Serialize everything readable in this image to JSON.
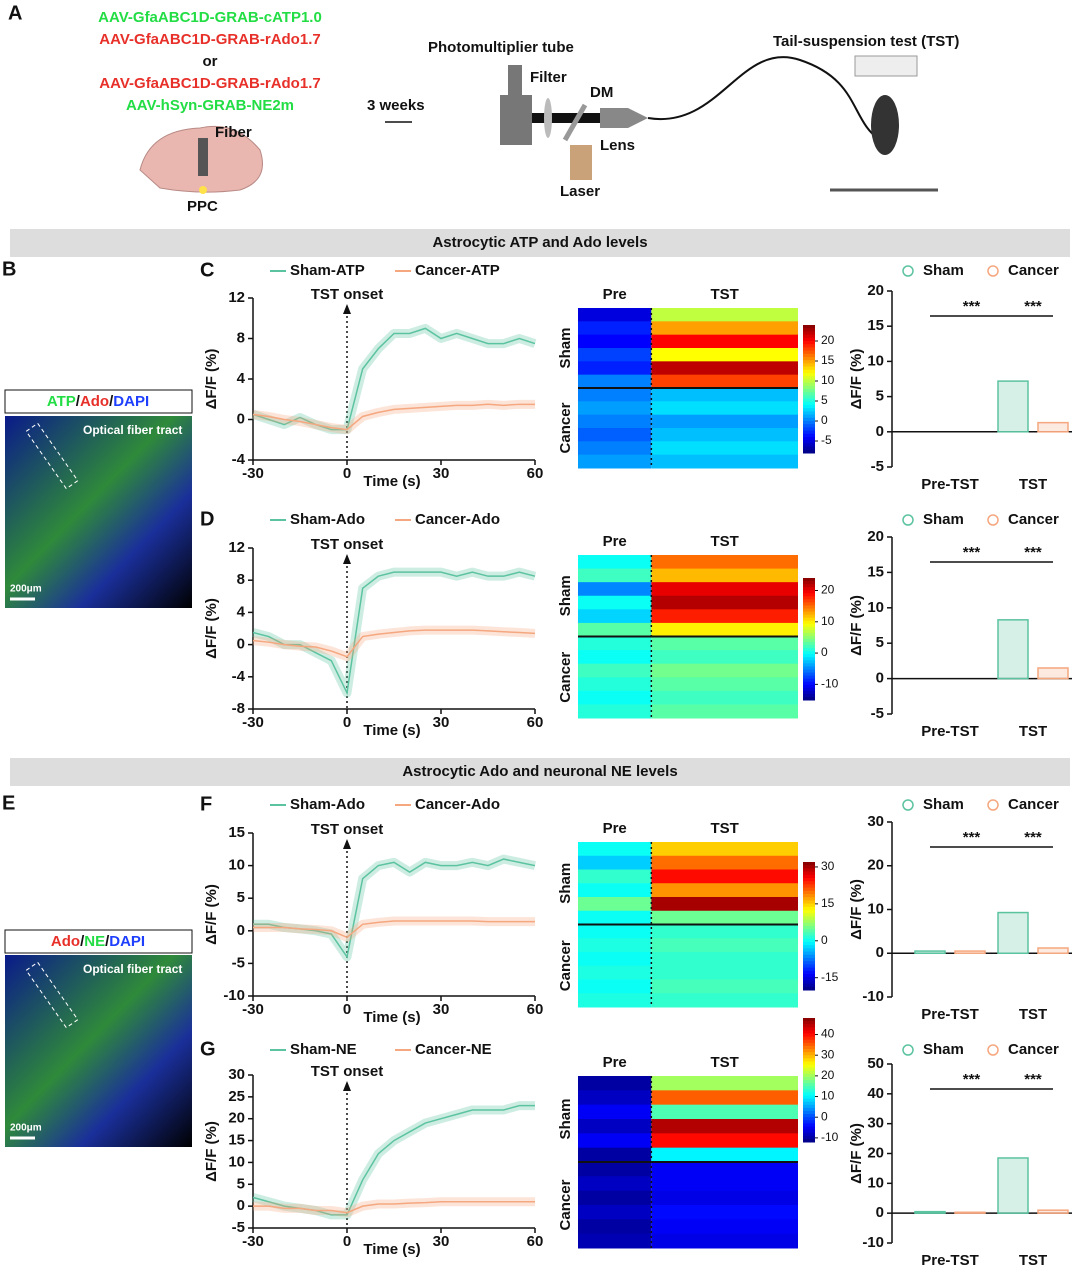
{
  "figure": {
    "panels": [
      "A",
      "B",
      "E"
    ],
    "constructs": [
      {
        "text": "AAV-GfaABC1D-GRAB-cATP1.0",
        "color": "#22dd44"
      },
      {
        "text": "AAV-GfaABC1D-GRAB-rAdo1.7",
        "color": "#e8302a"
      },
      {
        "text": "or",
        "color": "#111111"
      },
      {
        "text": "AAV-GfaABC1D-GRAB-rAdo1.7",
        "color": "#e8302a"
      },
      {
        "text": "AAV-hSyn-GRAB-NE2m",
        "color": "#22dd44"
      }
    ],
    "schematic": {
      "fiber": "Fiber",
      "region": "PPC",
      "delay": "3 weeks",
      "pmt": "Photomultiplier tube",
      "filter": "Filter",
      "dm": "DM",
      "lens": "Lens",
      "laser": "Laser",
      "test": "Tail-suspension test (TST)"
    },
    "sections": [
      "Astrocytic ATP and Ado levels",
      "Astrocytic Ado and neuronal NE levels"
    ],
    "images": [
      {
        "stain": [
          {
            "text": "ATP",
            "color": "#22dd44"
          },
          {
            "text": "/",
            "color": "#111111"
          },
          {
            "text": "Ado",
            "color": "#e8302a"
          },
          {
            "text": "/",
            "color": "#111111"
          },
          {
            "text": "DAPI",
            "color": "#1f3fff"
          }
        ],
        "tract": "Optical fiber tract",
        "scale": "200μm"
      },
      {
        "stain": [
          {
            "text": "Ado",
            "color": "#e8302a"
          },
          {
            "text": "/",
            "color": "#111111"
          },
          {
            "text": "NE",
            "color": "#22dd44"
          },
          {
            "text": "/",
            "color": "#111111"
          },
          {
            "text": "DAPI",
            "color": "#1f3fff"
          }
        ],
        "tract": "Optical fiber tract",
        "scale": "200μm"
      }
    ]
  },
  "chart_data": [
    {
      "type": "line",
      "panel": "C",
      "annotation": "TST onset",
      "xlabel": "Time (s)",
      "ylabel": "ΔF/F (%)",
      "x": [
        -30,
        -25,
        -20,
        -15,
        -10,
        -5,
        0,
        5,
        10,
        15,
        20,
        25,
        30,
        35,
        40,
        45,
        50,
        55,
        60
      ],
      "xlim": [
        -30,
        60
      ],
      "xticks": [
        -30,
        0,
        30,
        60
      ],
      "ylim": [
        -4,
        12
      ],
      "yticks": [
        -4,
        0,
        4,
        8,
        12
      ],
      "series": [
        {
          "name": "Sham-ATP",
          "color": "#5cc3a0",
          "values": [
            0.5,
            0,
            -0.5,
            0.2,
            -0.5,
            -1,
            -1,
            5,
            7,
            8.5,
            8.5,
            9,
            8,
            8.5,
            8,
            7.5,
            7.5,
            8,
            7.5
          ]
        },
        {
          "name": "Cancer-ATP",
          "color": "#f5a77f",
          "values": [
            0.5,
            0.3,
            0,
            -0.2,
            -0.5,
            -0.8,
            -1,
            0.3,
            0.7,
            1,
            1.1,
            1.2,
            1.3,
            1.4,
            1.4,
            1.5,
            1.4,
            1.5,
            1.5
          ]
        }
      ]
    },
    {
      "type": "heatmap",
      "columns": [
        "Pre",
        "TST"
      ],
      "zlim": [
        -8,
        24
      ],
      "zticks": [
        20,
        15,
        10,
        5,
        0,
        -5
      ],
      "groups": [
        {
          "name": "Sham",
          "values": [
            [
              -5,
              10
            ],
            [
              -3,
              15
            ],
            [
              -4,
              20
            ],
            [
              -2,
              12
            ],
            [
              -3,
              22
            ],
            [
              0,
              18
            ]
          ]
        },
        {
          "name": "Cancer",
          "values": [
            [
              0,
              2
            ],
            [
              1,
              3
            ],
            [
              0,
              1
            ],
            [
              -1,
              2
            ],
            [
              0,
              3
            ],
            [
              1,
              2
            ]
          ]
        }
      ]
    },
    {
      "type": "bar",
      "ylabel": "ΔF/F (%)",
      "categories": [
        "Pre-TST",
        "TST"
      ],
      "ylim": [
        -5,
        20
      ],
      "yticks": [
        -5,
        0,
        5,
        10,
        15,
        20
      ],
      "significance": [
        "***",
        "***"
      ],
      "series": [
        {
          "name": "Sham",
          "color": "#5cc3a0",
          "values": [
            0,
            7.2
          ]
        },
        {
          "name": "Cancer",
          "color": "#f5a77f",
          "values": [
            0,
            1.3
          ]
        }
      ]
    },
    {
      "type": "line",
      "panel": "D",
      "annotation": "TST onset",
      "xlabel": "Time (s)",
      "ylabel": "ΔF/F (%)",
      "x": [
        -30,
        -25,
        -20,
        -15,
        -10,
        -5,
        0,
        5,
        10,
        15,
        20,
        25,
        30,
        35,
        40,
        45,
        50,
        55,
        60
      ],
      "xlim": [
        -30,
        60
      ],
      "xticks": [
        -30,
        0,
        30,
        60
      ],
      "ylim": [
        -8,
        12
      ],
      "yticks": [
        -8,
        -4,
        0,
        4,
        8,
        12
      ],
      "series": [
        {
          "name": "Sham-Ado",
          "color": "#5cc3a0",
          "values": [
            1.5,
            1,
            0,
            0,
            -1,
            -2,
            -6,
            7,
            8.5,
            9,
            9,
            9,
            9,
            8.5,
            9,
            8.5,
            8.5,
            9,
            8.5
          ]
        },
        {
          "name": "Cancer-Ado",
          "color": "#f5a77f",
          "values": [
            0.5,
            0.3,
            0,
            -0.2,
            -0.3,
            -0.8,
            -1.5,
            1,
            1.3,
            1.5,
            1.7,
            1.8,
            1.8,
            1.8,
            1.8,
            1.7,
            1.6,
            1.5,
            1.4
          ]
        }
      ]
    },
    {
      "type": "heatmap",
      "columns": [
        "Pre",
        "TST"
      ],
      "zlim": [
        -15,
        24
      ],
      "zticks": [
        20,
        10,
        0,
        -10
      ],
      "groups": [
        {
          "name": "Sham",
          "values": [
            [
              0,
              15
            ],
            [
              2,
              12
            ],
            [
              -5,
              20
            ],
            [
              0,
              22
            ],
            [
              -2,
              18
            ],
            [
              3,
              10
            ]
          ]
        },
        {
          "name": "Cancer",
          "values": [
            [
              1,
              3
            ],
            [
              0,
              2
            ],
            [
              2,
              4
            ],
            [
              1,
              3
            ],
            [
              0,
              2
            ],
            [
              1,
              3
            ]
          ]
        }
      ]
    },
    {
      "type": "bar",
      "ylabel": "ΔF/F (%)",
      "categories": [
        "Pre-TST",
        "TST"
      ],
      "ylim": [
        -5,
        20
      ],
      "yticks": [
        -5,
        0,
        5,
        10,
        15,
        20
      ],
      "significance": [
        "***",
        "***"
      ],
      "series": [
        {
          "name": "Sham",
          "color": "#5cc3a0",
          "values": [
            0,
            8.3
          ]
        },
        {
          "name": "Cancer",
          "color": "#f5a77f",
          "values": [
            0,
            1.5
          ]
        }
      ]
    },
    {
      "type": "line",
      "panel": "F",
      "annotation": "TST onset",
      "xlabel": "Time (s)",
      "ylabel": "ΔF/F (%)",
      "x": [
        -30,
        -25,
        -20,
        -15,
        -10,
        -5,
        0,
        5,
        10,
        15,
        20,
        25,
        30,
        35,
        40,
        45,
        50,
        55,
        60
      ],
      "xlim": [
        -30,
        60
      ],
      "xticks": [
        -30,
        0,
        30,
        60
      ],
      "ylim": [
        -10,
        15
      ],
      "yticks": [
        -10,
        -5,
        0,
        5,
        10,
        15
      ],
      "series": [
        {
          "name": "Sham-Ado",
          "color": "#5cc3a0",
          "values": [
            1,
            1,
            0.5,
            0.3,
            0,
            -0.5,
            -4,
            8,
            10,
            10.5,
            9,
            10.5,
            10,
            10,
            10.5,
            10,
            11,
            10.5,
            10
          ]
        },
        {
          "name": "Cancer-Ado",
          "color": "#f5a77f",
          "values": [
            0.5,
            0.5,
            0.5,
            0.3,
            0.2,
            0,
            -1,
            1,
            1.3,
            1.5,
            1.5,
            1.5,
            1.5,
            1.5,
            1.5,
            1.4,
            1.4,
            1.4,
            1.4
          ]
        }
      ]
    },
    {
      "type": "heatmap",
      "columns": [
        "Pre",
        "TST"
      ],
      "zlim": [
        -20,
        32
      ],
      "zticks": [
        30,
        15,
        0,
        -15
      ],
      "groups": [
        {
          "name": "Sham",
          "values": [
            [
              0,
              15
            ],
            [
              -3,
              20
            ],
            [
              2,
              25
            ],
            [
              0,
              18
            ],
            [
              5,
              30
            ],
            [
              0,
              5
            ]
          ]
        },
        {
          "name": "Cancer",
          "values": [
            [
              0,
              2
            ],
            [
              1,
              3
            ],
            [
              0,
              2
            ],
            [
              1,
              2
            ],
            [
              0,
              3
            ],
            [
              1,
              2
            ]
          ]
        }
      ]
    },
    {
      "type": "bar",
      "ylabel": "ΔF/F (%)",
      "categories": [
        "Pre-TST",
        "TST"
      ],
      "ylim": [
        -10,
        30
      ],
      "yticks": [
        -10,
        0,
        10,
        20,
        30
      ],
      "significance": [
        "***",
        "***"
      ],
      "series": [
        {
          "name": "Sham",
          "color": "#5cc3a0",
          "values": [
            0.5,
            9.3
          ]
        },
        {
          "name": "Cancer",
          "color": "#f5a77f",
          "values": [
            0.5,
            1.2
          ]
        }
      ]
    },
    {
      "type": "line",
      "panel": "G",
      "annotation": "TST onset",
      "xlabel": "Time (s)",
      "ylabel": "ΔF/F (%)",
      "x": [
        -30,
        -25,
        -20,
        -15,
        -10,
        -5,
        0,
        5,
        10,
        15,
        20,
        25,
        30,
        35,
        40,
        45,
        50,
        55,
        60
      ],
      "xlim": [
        -30,
        60
      ],
      "xticks": [
        -30,
        0,
        30,
        60
      ],
      "ylim": [
        -5,
        30
      ],
      "yticks": [
        -5,
        0,
        5,
        10,
        15,
        20,
        25,
        30
      ],
      "series": [
        {
          "name": "Sham-NE",
          "color": "#5cc3a0",
          "values": [
            2,
            1,
            0,
            -0.5,
            -1,
            -2,
            -2,
            6,
            12,
            15,
            17,
            19,
            20,
            21,
            22,
            22,
            22,
            23,
            23
          ]
        },
        {
          "name": "Cancer-NE",
          "color": "#f5a77f",
          "values": [
            0,
            0,
            -0.5,
            -0.5,
            -1,
            -1,
            -1.5,
            0,
            0.5,
            0.5,
            0.7,
            0.8,
            1,
            1,
            1,
            1,
            1,
            1,
            1
          ]
        }
      ]
    },
    {
      "type": "heatmap",
      "columns": [
        "Pre",
        "TST"
      ],
      "zlim": [
        -12,
        48
      ],
      "zticks": [
        40,
        30,
        20,
        10,
        0,
        -10
      ],
      "groups": [
        {
          "name": "Sham",
          "values": [
            [
              -10,
              20
            ],
            [
              -8,
              35
            ],
            [
              -5,
              15
            ],
            [
              -8,
              45
            ],
            [
              -5,
              40
            ],
            [
              -10,
              10
            ]
          ]
        },
        {
          "name": "Cancer",
          "values": [
            [
              -10,
              -5
            ],
            [
              -8,
              -5
            ],
            [
              -10,
              -6
            ],
            [
              -8,
              -4
            ],
            [
              -10,
              -5
            ],
            [
              -9,
              -6
            ]
          ]
        }
      ]
    },
    {
      "type": "bar",
      "ylabel": "ΔF/F (%)",
      "categories": [
        "Pre-TST",
        "TST"
      ],
      "ylim": [
        -10,
        50
      ],
      "yticks": [
        -10,
        0,
        10,
        20,
        30,
        40,
        50
      ],
      "significance": [
        "***",
        "***"
      ],
      "series": [
        {
          "name": "Sham",
          "color": "#5cc3a0",
          "values": [
            0.5,
            18.5
          ]
        },
        {
          "name": "Cancer",
          "color": "#f5a77f",
          "values": [
            0.3,
            1
          ]
        }
      ]
    }
  ]
}
